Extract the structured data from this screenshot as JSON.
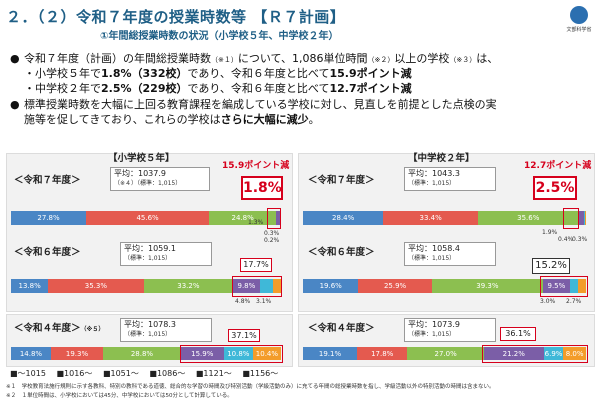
{
  "header": {
    "title": "２．（２）令和７年度の授業時数等 【Ｒ７計画】",
    "subtitle": "①年間総授業時数の状況（小学校５年、中学校２年）",
    "logo_label": "文部科学省"
  },
  "bullets": {
    "b1_a": "令和７年度（計画）の年間総授業時数",
    "b1_n1": "（※１）",
    "b1_b": "について、1,086単位時間",
    "b1_n2": "（※２）",
    "b1_c": "以上の学校",
    "b1_n3": "（※３）",
    "b1_d": "は、",
    "s1_a": "・小学校５年で",
    "s1_b": "1.8%（332校）",
    "s1_c": "であり、令和６年度と比べて",
    "s1_d": "15.9ポイント減",
    "s2_a": "・中学校２年で",
    "s2_b": "2.5%（229校）",
    "s2_c": "であり、令和６年度と比べて",
    "s2_d": "12.7ポイント減",
    "b2_line1": "標準授業時数を大幅に上回る教育課程を編成している学校に対し、見直しを前提とした点検の実",
    "b2_line2_a": "施等を促してきており、これらの学校は",
    "b2_line2_b": "さらに大幅に減少",
    "b2_line2_c": "。"
  },
  "elementary": {
    "heading": "【小学校５年】",
    "decrease": "15.9ポイント減",
    "r7": {
      "label": "＜令和７年度＞",
      "avg": "平均：1037.9",
      "std": "（標準：1,015）",
      "std_note": "（※４）",
      "highlight": "1.8%",
      "segments": [
        "27.8%",
        "45.6%",
        "24.8%"
      ],
      "small": [
        "1.3%",
        "0.3%",
        "0.2%"
      ]
    },
    "r6": {
      "label": "＜令和６年度＞",
      "avg": "平均：1059.1",
      "std": "（標準：1,015）",
      "highlight": "17.7%",
      "segments": [
        "13.8%",
        "35.3%",
        "33.2%",
        "9.8%"
      ],
      "small": [
        "4.8%",
        "3.1%"
      ]
    },
    "r4": {
      "label": "＜令和４年度＞",
      "note": "（※５）",
      "avg": "平均：1078.3",
      "std": "（標準：1,015）",
      "highlight": "37.1%",
      "segments": [
        "14.8%",
        "19.3%",
        "28.8%",
        "15.9%",
        "10.8%",
        "10.4%"
      ]
    }
  },
  "junior": {
    "heading": "【中学校２年】",
    "decrease": "12.7ポイント減",
    "r7": {
      "label": "＜令和７年度＞",
      "avg": "平均：1043.3",
      "std": "（標準：1,015）",
      "highlight": "2.5%",
      "segments": [
        "28.4%",
        "33.4%",
        "35.6%"
      ],
      "small": [
        "1.9%",
        "0.4%",
        "0.3%"
      ]
    },
    "r6": {
      "label": "＜令和６年度＞",
      "avg": "平均：1058.4",
      "std": "（標準：1,015）",
      "highlight": "15.2%",
      "segments": [
        "19.6%",
        "25.9%",
        "39.3%",
        "9.5%"
      ],
      "small": [
        "3.0%",
        "2.7%"
      ]
    },
    "r4": {
      "label": "＜令和４年度＞",
      "avg": "平均：1073.9",
      "std": "（標準：1,015）",
      "highlight": "36.1%",
      "segments": [
        "19.1%",
        "17.8%",
        "27.0%",
        "21.2%",
        "6.9%",
        "8.0%"
      ]
    }
  },
  "legend": [
    "■〜1015",
    "■1016〜",
    "■1051〜",
    "■1086〜",
    "■1121〜",
    "■1156〜"
  ],
  "colors": [
    "#4a86c5",
    "#e45a4f",
    "#8cbf50",
    "#7b5ea7",
    "#3fb8d8",
    "#f39c2a"
  ],
  "footnotes": [
    "※１　学校教育法施行規則に示す各教科、特別の教科である道徳、総合的な学習の時間及び特別活動（学級活動のみ）に充てる年間の総授業時数を指し、学級活動以外の特別活動の時間は含まない。",
    "※２　１単位時間は、小学校においては45分、中学校においては50分として計算している。"
  ]
}
